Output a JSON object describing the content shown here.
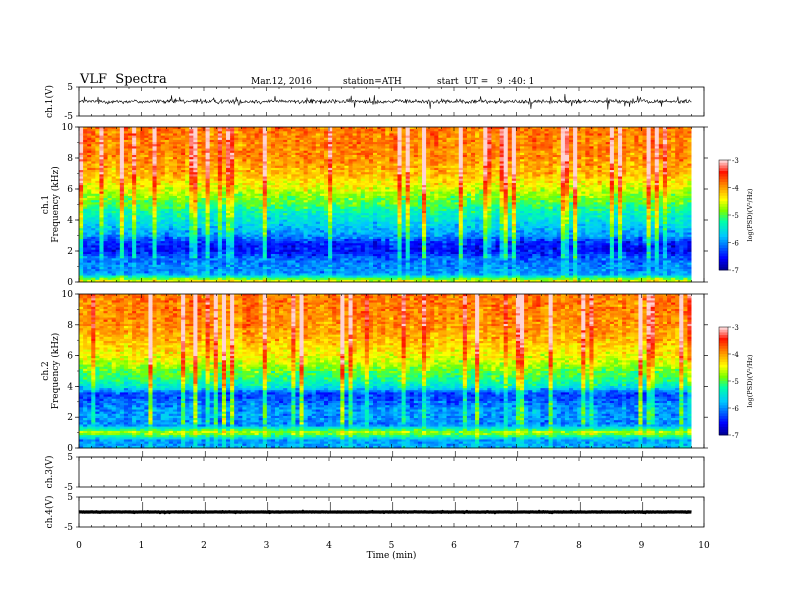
{
  "header": {
    "title": "VLF  Spectra",
    "date": "Mar.12, 2016",
    "station": "station=ATH",
    "start": "start  UT =   9  :40: 1"
  },
  "chart_data": [
    {
      "type": "line",
      "panel": "ch1-waveform",
      "ylabel": "ch.1(V)",
      "ylim": [
        -5,
        5
      ],
      "yticks": [
        "5",
        "-5"
      ],
      "x_range_min": [
        0,
        9.8
      ],
      "baseline_v": 0.0,
      "amplitude_v": 1.2
    },
    {
      "type": "heatmap",
      "panel": "ch1-spectrogram",
      "ylabel": "ch.1\nFrequency (kHz)",
      "ylabel_lines": [
        "ch.1",
        "Frequency (kHz)"
      ],
      "ylim": [
        0,
        10
      ],
      "yticks": [
        "0",
        "2",
        "4",
        "6",
        "8",
        "10"
      ],
      "colorbar": {
        "label": "log(PSD)(V²/Hz)",
        "ticks": [
          "-3",
          "-4",
          "-5",
          "-6",
          "-7"
        ],
        "range": [
          -7,
          -3
        ]
      },
      "psd_profile": [
        {
          "freq_khz": 0.0,
          "log_psd": -4.3
        },
        {
          "freq_khz": 0.5,
          "log_psd": -5.9
        },
        {
          "freq_khz": 1.0,
          "log_psd": -6.0
        },
        {
          "freq_khz": 1.5,
          "log_psd": -6.1
        },
        {
          "freq_khz": 2.0,
          "log_psd": -6.5
        },
        {
          "freq_khz": 2.5,
          "log_psd": -6.4
        },
        {
          "freq_khz": 3.0,
          "log_psd": -5.9
        },
        {
          "freq_khz": 3.5,
          "log_psd": -5.7
        },
        {
          "freq_khz": 4.0,
          "log_psd": -5.5
        },
        {
          "freq_khz": 4.5,
          "log_psd": -5.3
        },
        {
          "freq_khz": 5.0,
          "log_psd": -5.0
        },
        {
          "freq_khz": 5.5,
          "log_psd": -4.8
        },
        {
          "freq_khz": 6.0,
          "log_psd": -4.5
        },
        {
          "freq_khz": 7.0,
          "log_psd": -4.1
        },
        {
          "freq_khz": 8.0,
          "log_psd": -3.9
        },
        {
          "freq_khz": 10.0,
          "log_psd": -3.8
        }
      ]
    },
    {
      "type": "heatmap",
      "panel": "ch2-spectrogram",
      "ylabel": "ch.2\nFrequency (kHz)",
      "ylabel_lines": [
        "ch.2",
        "Frequency (kHz)"
      ],
      "ylim": [
        0,
        10
      ],
      "yticks": [
        "0",
        "2",
        "4",
        "6",
        "8",
        "10"
      ],
      "colorbar": {
        "label": "log(PSD)(V²/Hz)",
        "ticks": [
          "-3",
          "-4",
          "-5",
          "-6",
          "-7"
        ],
        "range": [
          -7,
          -3
        ]
      },
      "psd_profile": [
        {
          "freq_khz": 0.0,
          "log_psd": -5.8
        },
        {
          "freq_khz": 0.5,
          "log_psd": -5.9
        },
        {
          "freq_khz": 1.0,
          "log_psd": -4.6
        },
        {
          "freq_khz": 1.5,
          "log_psd": -6.0
        },
        {
          "freq_khz": 2.0,
          "log_psd": -5.9
        },
        {
          "freq_khz": 2.5,
          "log_psd": -5.9
        },
        {
          "freq_khz": 3.0,
          "log_psd": -6.1
        },
        {
          "freq_khz": 3.5,
          "log_psd": -6.3
        },
        {
          "freq_khz": 4.0,
          "log_psd": -5.4
        },
        {
          "freq_khz": 4.5,
          "log_psd": -5.1
        },
        {
          "freq_khz": 5.0,
          "log_psd": -4.9
        },
        {
          "freq_khz": 5.5,
          "log_psd": -4.6
        },
        {
          "freq_khz": 6.0,
          "log_psd": -4.4
        },
        {
          "freq_khz": 7.0,
          "log_psd": -4.1
        },
        {
          "freq_khz": 8.0,
          "log_psd": -3.9
        },
        {
          "freq_khz": 10.0,
          "log_psd": -3.8
        }
      ]
    },
    {
      "type": "line",
      "panel": "ch3-waveform",
      "ylabel": "ch.3(V)",
      "ylim": [
        -5,
        5
      ],
      "yticks": [
        "5",
        "-5"
      ],
      "baseline_v": 5.0,
      "amplitude_v": 0.0
    },
    {
      "type": "line",
      "panel": "ch4-waveform",
      "ylabel": "ch.4(V)",
      "ylim": [
        -5,
        5
      ],
      "yticks": [
        "5",
        "-5"
      ],
      "baseline_v": 0.0,
      "amplitude_v": 0.1
    }
  ],
  "xaxis": {
    "label": "Time  (min)",
    "ticks": [
      "0",
      "1",
      "2",
      "3",
      "4",
      "5",
      "6",
      "7",
      "8",
      "9",
      "10"
    ],
    "range": [
      0,
      10
    ],
    "data_end_min": 9.8
  }
}
